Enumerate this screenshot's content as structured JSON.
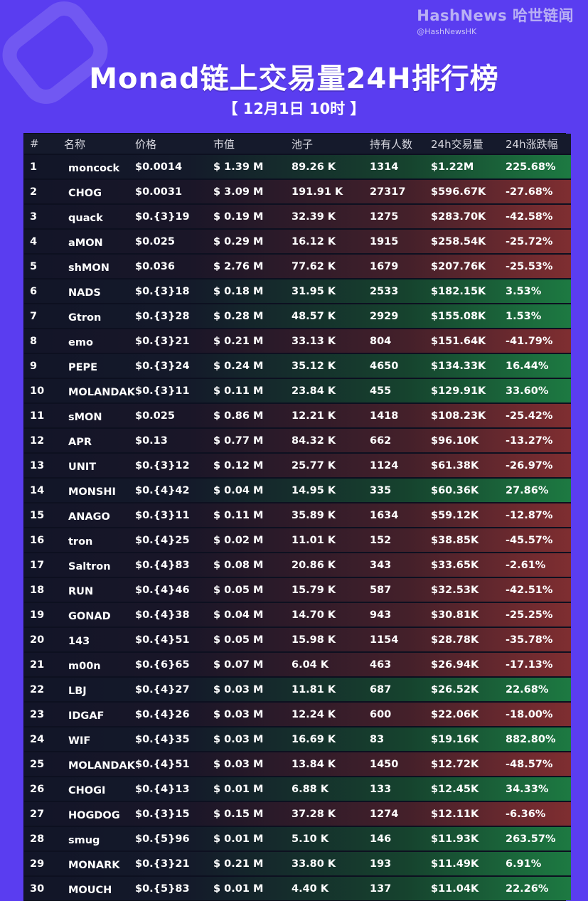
{
  "brand": {
    "name": "HashNews 哈世链闻",
    "handle": "@HashNewsHK"
  },
  "title": "Monad链上交易量24H排行榜",
  "subtitle": "【 12月1日  10时 】",
  "columns": [
    "#",
    "名称",
    "价格",
    "市值",
    "池子",
    "持有人数",
    "24h交易量",
    "24h涨跌幅"
  ],
  "rows": [
    {
      "rank": "1",
      "name": "moncock",
      "price": "$0.0014",
      "mcap": "$ 1.39 M",
      "pool": "89.26 K",
      "holders": "1314",
      "volume": "$1.22M",
      "change": "225.68%",
      "trend": "up"
    },
    {
      "rank": "2",
      "name": "CHOG",
      "price": "$0.0031",
      "mcap": "$ 3.09 M",
      "pool": "191.91 K",
      "holders": "27317",
      "volume": "$596.67K",
      "change": "-27.68%",
      "trend": "down"
    },
    {
      "rank": "3",
      "name": "quack",
      "price": "$0.{3}19",
      "mcap": "$ 0.19 M",
      "pool": "32.39 K",
      "holders": "1275",
      "volume": "$283.70K",
      "change": "-42.58%",
      "trend": "down"
    },
    {
      "rank": "4",
      "name": "aMON",
      "price": "$0.025",
      "mcap": "$ 0.29 M",
      "pool": "16.12 K",
      "holders": "1915",
      "volume": "$258.54K",
      "change": "-25.72%",
      "trend": "down"
    },
    {
      "rank": "5",
      "name": "shMON",
      "price": "$0.036",
      "mcap": "$ 2.76 M",
      "pool": "77.62 K",
      "holders": "1679",
      "volume": "$207.76K",
      "change": "-25.53%",
      "trend": "down"
    },
    {
      "rank": "6",
      "name": "NADS",
      "price": "$0.{3}18",
      "mcap": "$ 0.18 M",
      "pool": "31.95 K",
      "holders": "2533",
      "volume": "$182.15K",
      "change": "3.53%",
      "trend": "up"
    },
    {
      "rank": "7",
      "name": "Gtron",
      "price": "$0.{3}28",
      "mcap": "$ 0.28 M",
      "pool": "48.57 K",
      "holders": "2929",
      "volume": "$155.08K",
      "change": "1.53%",
      "trend": "up"
    },
    {
      "rank": "8",
      "name": "emo",
      "price": "$0.{3}21",
      "mcap": "$ 0.21 M",
      "pool": "33.13 K",
      "holders": "804",
      "volume": "$151.64K",
      "change": "-41.79%",
      "trend": "down"
    },
    {
      "rank": "9",
      "name": "PEPE",
      "price": "$0.{3}24",
      "mcap": "$ 0.24 M",
      "pool": "35.12 K",
      "holders": "4650",
      "volume": "$134.33K",
      "change": "16.44%",
      "trend": "up"
    },
    {
      "rank": "10",
      "name": "MOLANDAK",
      "price": "$0.{3}11",
      "mcap": "$ 0.11 M",
      "pool": "23.84 K",
      "holders": "455",
      "volume": "$129.91K",
      "change": "33.60%",
      "trend": "up"
    },
    {
      "rank": "11",
      "name": "sMON",
      "price": "$0.025",
      "mcap": "$ 0.86 M",
      "pool": "12.21 K",
      "holders": "1418",
      "volume": "$108.23K",
      "change": "-25.42%",
      "trend": "down"
    },
    {
      "rank": "12",
      "name": "APR",
      "price": "$0.13",
      "mcap": "$ 0.77 M",
      "pool": "84.32 K",
      "holders": "662",
      "volume": "$96.10K",
      "change": "-13.27%",
      "trend": "down"
    },
    {
      "rank": "13",
      "name": "UNIT",
      "price": "$0.{3}12",
      "mcap": "$ 0.12 M",
      "pool": "25.77 K",
      "holders": "1124",
      "volume": "$61.38K",
      "change": "-26.97%",
      "trend": "down"
    },
    {
      "rank": "14",
      "name": "MONSHI",
      "price": "$0.{4}42",
      "mcap": "$ 0.04 M",
      "pool": "14.95 K",
      "holders": "335",
      "volume": "$60.36K",
      "change": "27.86%",
      "trend": "up"
    },
    {
      "rank": "15",
      "name": "ANAGO",
      "price": "$0.{3}11",
      "mcap": "$ 0.11 M",
      "pool": "35.89 K",
      "holders": "1634",
      "volume": "$59.12K",
      "change": "-12.87%",
      "trend": "down"
    },
    {
      "rank": "16",
      "name": "tron",
      "price": "$0.{4}25",
      "mcap": "$ 0.02 M",
      "pool": "11.01 K",
      "holders": "152",
      "volume": "$38.85K",
      "change": "-45.57%",
      "trend": "down"
    },
    {
      "rank": "17",
      "name": "Saltron",
      "price": "$0.{4}83",
      "mcap": "$ 0.08 M",
      "pool": "20.86 K",
      "holders": "343",
      "volume": "$33.65K",
      "change": "-2.61%",
      "trend": "down"
    },
    {
      "rank": "18",
      "name": "RUN",
      "price": "$0.{4}46",
      "mcap": "$ 0.05 M",
      "pool": "15.79 K",
      "holders": "587",
      "volume": "$32.53K",
      "change": "-42.51%",
      "trend": "down"
    },
    {
      "rank": "19",
      "name": "GONAD",
      "price": "$0.{4}38",
      "mcap": "$ 0.04 M",
      "pool": "14.70 K",
      "holders": "943",
      "volume": "$30.81K",
      "change": "-25.25%",
      "trend": "down"
    },
    {
      "rank": "20",
      "name": "143",
      "price": "$0.{4}51",
      "mcap": "$ 0.05 M",
      "pool": "15.98 K",
      "holders": "1154",
      "volume": "$28.78K",
      "change": "-35.78%",
      "trend": "down"
    },
    {
      "rank": "21",
      "name": "m00n",
      "price": "$0.{6}65",
      "mcap": "$ 0.07 M",
      "pool": "6.04 K",
      "holders": "463",
      "volume": "$26.94K",
      "change": "-17.13%",
      "trend": "down"
    },
    {
      "rank": "22",
      "name": "LBJ",
      "price": "$0.{4}27",
      "mcap": "$ 0.03 M",
      "pool": "11.81 K",
      "holders": "687",
      "volume": "$26.52K",
      "change": "22.68%",
      "trend": "up"
    },
    {
      "rank": "23",
      "name": "IDGAF",
      "price": "$0.{4}26",
      "mcap": "$ 0.03 M",
      "pool": "12.24 K",
      "holders": "600",
      "volume": "$22.06K",
      "change": "-18.00%",
      "trend": "down"
    },
    {
      "rank": "24",
      "name": "WIF",
      "price": "$0.{4}35",
      "mcap": "$ 0.03 M",
      "pool": "16.69 K",
      "holders": "83",
      "volume": "$19.16K",
      "change": "882.80%",
      "trend": "up"
    },
    {
      "rank": "25",
      "name": "MOLANDAK",
      "price": "$0.{4}51",
      "mcap": "$ 0.03 M",
      "pool": "13.84 K",
      "holders": "1450",
      "volume": "$12.72K",
      "change": "-48.57%",
      "trend": "down"
    },
    {
      "rank": "26",
      "name": "CHOGI",
      "price": "$0.{4}13",
      "mcap": "$ 0.01 M",
      "pool": "6.88 K",
      "holders": "133",
      "volume": "$12.45K",
      "change": "34.33%",
      "trend": "up"
    },
    {
      "rank": "27",
      "name": "HOGDOG",
      "price": "$0.{3}15",
      "mcap": "$ 0.15 M",
      "pool": "37.28 K",
      "holders": "1274",
      "volume": "$12.11K",
      "change": "-6.36%",
      "trend": "down"
    },
    {
      "rank": "28",
      "name": "smug",
      "price": "$0.{5}96",
      "mcap": "$ 0.01 M",
      "pool": "5.10 K",
      "holders": "146",
      "volume": "$11.93K",
      "change": "263.57%",
      "trend": "up"
    },
    {
      "rank": "29",
      "name": "MONARK",
      "price": "$0.{3}21",
      "mcap": "$ 0.21 M",
      "pool": "33.80 K",
      "holders": "193",
      "volume": "$11.49K",
      "change": "6.91%",
      "trend": "up"
    },
    {
      "rank": "30",
      "name": "MOUCH",
      "price": "$0.{5}83",
      "mcap": "$ 0.01 M",
      "pool": "4.40 K",
      "holders": "137",
      "volume": "$11.04K",
      "change": "22.26%",
      "trend": "up"
    }
  ]
}
